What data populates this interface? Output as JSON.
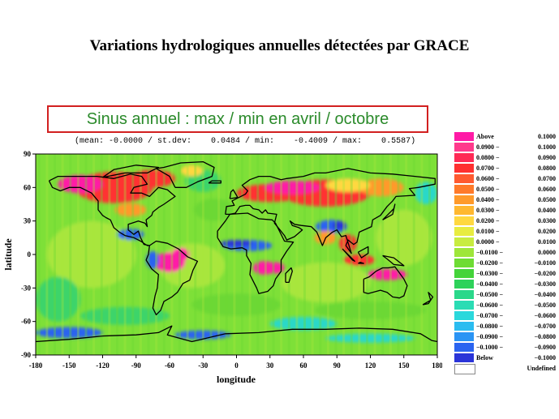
{
  "title": "Variations hydrologiques annuelles détectées par GRACE",
  "subtitle": "Sinus annuel : max / min en avril / octobre",
  "stats": "(mean: -0.0000 / st.dev:    0.0484 / min:    -0.4009 / max:    0.5587)",
  "axes": {
    "xlabel": "longitude",
    "ylabel": "latitude",
    "x_ticks": [
      "-180",
      "-150",
      "-120",
      "-90",
      "-60",
      "-30",
      "0",
      "30",
      "60",
      "90",
      "120",
      "150",
      "180"
    ],
    "y_ticks": [
      "90",
      "60",
      "30",
      "0",
      "-30",
      "-60",
      "-90"
    ]
  },
  "legend": [
    {
      "lo": "Above",
      "hi": "0.1000",
      "color": "#ff1aa6"
    },
    {
      "lo": "0.0900",
      "hi": "0.1000",
      "color": "#ff3a8c"
    },
    {
      "lo": "0.0800",
      "hi": "0.0900",
      "color": "#ff2a55"
    },
    {
      "lo": "0.0700",
      "hi": "0.0800",
      "color": "#ff3030"
    },
    {
      "lo": "0.0600",
      "hi": "0.0700",
      "color": "#ff5a30"
    },
    {
      "lo": "0.0500",
      "hi": "0.0600",
      "color": "#ff7a2a"
    },
    {
      "lo": "0.0400",
      "hi": "0.0500",
      "color": "#ff9a2a"
    },
    {
      "lo": "0.0300",
      "hi": "0.0400",
      "color": "#ffb830"
    },
    {
      "lo": "0.0200",
      "hi": "0.0300",
      "color": "#ffd840"
    },
    {
      "lo": "0.0100",
      "hi": "0.0200",
      "color": "#e8ec40"
    },
    {
      "lo": "0.0000",
      "hi": "0.0100",
      "color": "#c8ec40"
    },
    {
      "lo": "−0.0100",
      "hi": "0.0000",
      "color": "#9ee63a"
    },
    {
      "lo": "−0.0200",
      "hi": "−0.0100",
      "color": "#6edc34"
    },
    {
      "lo": "−0.0300",
      "hi": "−0.0200",
      "color": "#44d43a"
    },
    {
      "lo": "−0.0400",
      "hi": "−0.0300",
      "color": "#2ed25a"
    },
    {
      "lo": "−0.0500",
      "hi": "−0.0400",
      "color": "#2ad88a"
    },
    {
      "lo": "−0.0600",
      "hi": "−0.0500",
      "color": "#2adcb4"
    },
    {
      "lo": "−0.0700",
      "hi": "−0.0600",
      "color": "#2ad8dc"
    },
    {
      "lo": "−0.0800",
      "hi": "−0.0700",
      "color": "#2abcf0"
    },
    {
      "lo": "−0.0900",
      "hi": "−0.0800",
      "color": "#2a94f4"
    },
    {
      "lo": "−0.1000",
      "hi": "−0.0900",
      "color": "#2a64f0"
    },
    {
      "lo": "Below",
      "hi": "−0.1000",
      "color": "#2a34d8"
    },
    {
      "lo": "",
      "hi": "Undefined",
      "color": "#ffffff"
    }
  ],
  "map_colors": {
    "background": "#7ee038",
    "ocean_light": "#a8e63c",
    "ocean_mid": "#6cd834",
    "ocean_cool": "#3ed46a",
    "ocean_cyan": "#2ad8c8",
    "positive_high": "#ff1aa6",
    "positive_red": "#ff3030",
    "positive_orange": "#ff9a2a",
    "positive_yellow": "#ffd840",
    "negative_blue": "#2a64f0",
    "negative_deep": "#2a34d8",
    "coastline": "#000000"
  }
}
